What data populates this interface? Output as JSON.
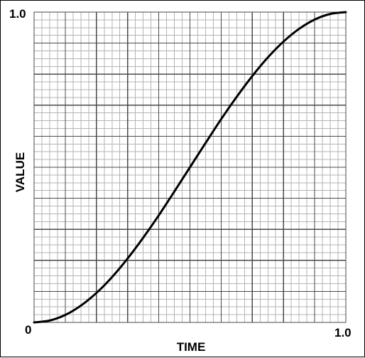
{
  "chart_data": {
    "type": "line",
    "xlabel": "TIME",
    "ylabel": "VALUE",
    "xlim": [
      0,
      1.0
    ],
    "ylim": [
      0,
      1.0
    ],
    "tick_labels": {
      "origin": "0",
      "x_max": "1.0",
      "y_max": "1.0"
    },
    "grid": true,
    "grid_major_divisions": {
      "x": 10,
      "y": 10
    },
    "grid_minor_per_major": 4,
    "series": [
      {
        "x": [
          0.0,
          0.05,
          0.1,
          0.15,
          0.2,
          0.25,
          0.3,
          0.35,
          0.4,
          0.45,
          0.5,
          0.55,
          0.6,
          0.65,
          0.7,
          0.75,
          0.8,
          0.85,
          0.9,
          0.95,
          1.0
        ],
        "y": [
          0.0,
          0.006,
          0.024,
          0.054,
          0.095,
          0.146,
          0.206,
          0.273,
          0.345,
          0.422,
          0.5,
          0.578,
          0.655,
          0.727,
          0.794,
          0.854,
          0.905,
          0.946,
          0.976,
          0.994,
          1.0
        ],
        "color": "#000000"
      }
    ],
    "colors": {
      "minor_grid": "#b4b4b4",
      "major_grid": "#4a4a4a",
      "curve": "#000000"
    }
  }
}
